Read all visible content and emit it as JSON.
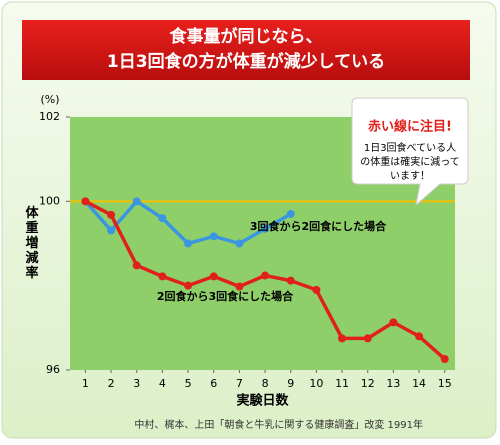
{
  "chart_data": {
    "type": "line",
    "title_lines": [
      "食事量が同じなら、",
      "1日3回食の方が体重が減少している"
    ],
    "y_unit": "(%)",
    "ylabel": "体重増減率",
    "xlabel": "実験日数",
    "x": [
      1,
      2,
      3,
      4,
      5,
      6,
      7,
      8,
      9,
      10,
      11,
      12,
      13,
      14,
      15
    ],
    "xlim": [
      0.4,
      15.4
    ],
    "xticks": [
      1,
      2,
      3,
      4,
      5,
      6,
      7,
      8,
      9,
      10,
      11,
      12,
      13,
      14,
      15
    ],
    "ylim": [
      96,
      102
    ],
    "yticks": [
      96,
      100,
      102
    ],
    "reference_line": 100,
    "reference_color": "#f2c200",
    "plot_color": "#8fcf6a",
    "series": [
      {
        "name": "3回食から2回食にした場合",
        "color": "#3a96e0",
        "values": [
          100,
          99.31,
          100,
          99.6,
          99.0,
          99.17,
          99.0,
          99.35,
          99.7,
          null,
          null,
          null,
          null,
          null,
          null
        ]
      },
      {
        "name": "2回食から3回食にした場合",
        "color": "#e0201a",
        "values": [
          100,
          99.68,
          98.48,
          98.22,
          98.0,
          98.22,
          97.98,
          98.24,
          98.12,
          97.9,
          96.75,
          96.75,
          97.13,
          96.8,
          96.26
        ]
      }
    ],
    "callout": {
      "heading": "赤い線に注目!",
      "lines": [
        "1日3回食べている人",
        "の体重は確実に減って",
        "います！"
      ]
    },
    "source": "中村、梶本、上田「朝食と牛乳に関する健康調査」改変 1991年"
  }
}
